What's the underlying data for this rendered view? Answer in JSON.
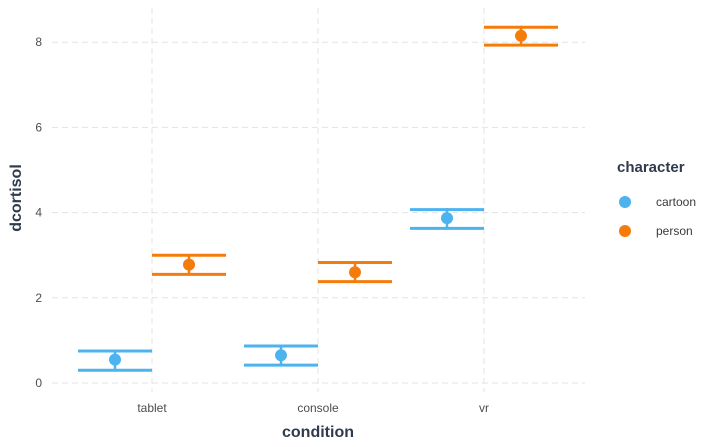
{
  "chart_data": {
    "type": "scatter",
    "xlabel": "condition",
    "ylabel": "dcortisol",
    "categories": [
      "tablet",
      "console",
      "vr"
    ],
    "ylim": [
      -0.1,
      8.8
    ],
    "yticks": [
      0,
      2,
      4,
      6,
      8
    ],
    "grid": true,
    "legend": {
      "title": "character",
      "placement": "right"
    },
    "series": [
      {
        "name": "cartoon",
        "color": "#4db3ef",
        "points": [
          {
            "x": "tablet",
            "y": 0.55,
            "ymin": 0.3,
            "ymax": 0.75
          },
          {
            "x": "console",
            "y": 0.65,
            "ymin": 0.42,
            "ymax": 0.87
          },
          {
            "x": "vr",
            "y": 3.87,
            "ymin": 3.63,
            "ymax": 4.07
          }
        ]
      },
      {
        "name": "person",
        "color": "#f57c0b",
        "points": [
          {
            "x": "tablet",
            "y": 2.78,
            "ymin": 2.55,
            "ymax": 3.0
          },
          {
            "x": "console",
            "y": 2.6,
            "ymin": 2.38,
            "ymax": 2.83
          },
          {
            "x": "vr",
            "y": 8.15,
            "ymin": 7.93,
            "ymax": 8.35
          }
        ]
      }
    ]
  }
}
